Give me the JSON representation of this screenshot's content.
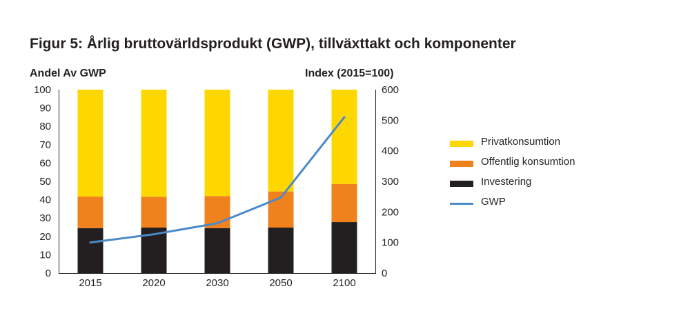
{
  "title": "Figur 5: Årlig bruttovärldsprodukt (GWP), tillväxttakt och komponenter",
  "chart_data": {
    "type": "bar",
    "stacked": true,
    "categories": [
      "2015",
      "2020",
      "2030",
      "2050",
      "2100"
    ],
    "ylabel": "Andel Av GWP",
    "ylabel_right": "Index (2015=100)",
    "ylim": [
      0,
      100
    ],
    "ylim_right": [
      0,
      600
    ],
    "yticks": [
      0,
      10,
      20,
      30,
      40,
      50,
      60,
      70,
      80,
      90,
      100
    ],
    "yticks_right": [
      0,
      100,
      200,
      300,
      400,
      500,
      600
    ],
    "grid": false,
    "legend_position": "right",
    "series": [
      {
        "name": "Investering",
        "color": "#231f20",
        "values": [
          24.5,
          24.8,
          24.5,
          24.8,
          27.8
        ]
      },
      {
        "name": "Offentlig konsumtion",
        "color": "#f0821e",
        "values": [
          17.2,
          16.8,
          17.5,
          19.7,
          20.8
        ]
      },
      {
        "name": "Privatkonsumtion",
        "color": "#ffd700",
        "values": [
          58.3,
          58.4,
          58.0,
          55.5,
          51.4
        ]
      }
    ],
    "line_series": {
      "name": "GWP",
      "color": "#4a8ac9",
      "axis": "right",
      "values": [
        100,
        127,
        163,
        247,
        510
      ]
    }
  }
}
